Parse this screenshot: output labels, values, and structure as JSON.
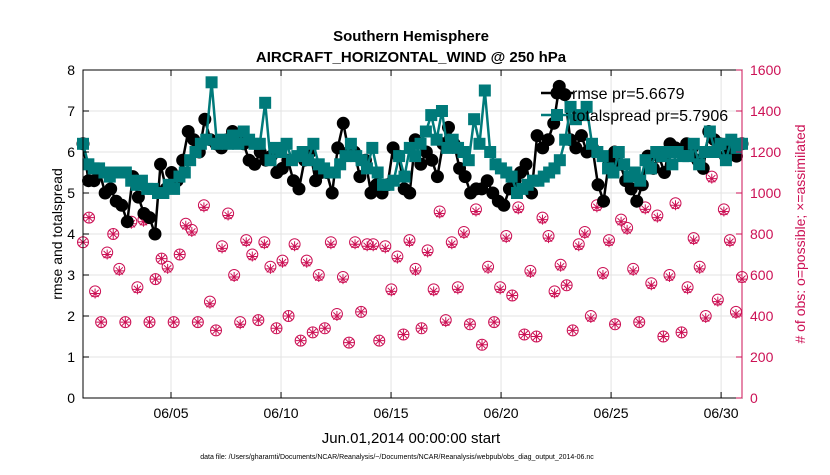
{
  "chart_data": {
    "type": "line",
    "title": "Southern Hemisphere",
    "subtitle": "AIRCRAFT_HORIZONTAL_WIND @ 250 hPa",
    "xlabel": "Jun.01,2014 00:00:00 start",
    "ylabel": "rmse and totalspread",
    "ylabel_right": "# of obs: o=possible; ×=assimilated",
    "footer": "data file: /Users/gharamti/Documents/NCAR/Reanalysis/~/Documents/NCAR/Reanalysis/webpub/obs_diag_output_2014-06.nc",
    "xlim": [
      1.0,
      30.95
    ],
    "ylim": [
      0,
      8
    ],
    "ylim_right": [
      0,
      1600
    ],
    "x_ticks": [
      5,
      10,
      15,
      20,
      25,
      30
    ],
    "x_tick_labels": [
      "06/05",
      "06/10",
      "06/15",
      "06/20",
      "06/25",
      "06/30"
    ],
    "y_ticks": [
      0,
      1,
      2,
      3,
      4,
      5,
      6,
      7,
      8
    ],
    "y_tick_labels": [
      "0",
      "1",
      "2",
      "3",
      "4",
      "5",
      "6",
      "7",
      "8"
    ],
    "y_ticks_right": [
      0,
      200,
      400,
      600,
      800,
      1000,
      1200,
      1400,
      1600
    ],
    "y_tick_labels_right": [
      "0",
      "200",
      "400",
      "600",
      "800",
      "1000",
      "1200",
      "1400",
      "1600"
    ],
    "grid": true,
    "legend_position": "top-right",
    "colors": {
      "rmse": "#000000",
      "totalspread": "#007a7a",
      "obs": "#cc1155",
      "axis_right": "#cc1155"
    },
    "series": [
      {
        "name": "rmse pr=5.6679",
        "axis": "left",
        "marker": "circle",
        "values": [
          6.2,
          5.3,
          5.3,
          5.5,
          5.0,
          5.1,
          4.8,
          4.7,
          4.3,
          5.4,
          4.9,
          4.5,
          4.4,
          4.0,
          5.7,
          5.1,
          5.5,
          5.3,
          5.8,
          6.5,
          6.3,
          6.0,
          6.8,
          6.3,
          6.2,
          6.1,
          6.3,
          6.5,
          6.3,
          6.2,
          5.8,
          5.7,
          6.0,
          5.8,
          5.9,
          5.5,
          5.6,
          5.8,
          5.3,
          5.1,
          5.8,
          6.0,
          5.3,
          5.5,
          5.5,
          5.0,
          6.1,
          6.7,
          6.0,
          6.0,
          5.4,
          5.8,
          5.0,
          5.2,
          5.0,
          5.2,
          6.1,
          5.9,
          5.1,
          5.0,
          6.3,
          5.7,
          6.0,
          5.8,
          5.4,
          6.2,
          6.6,
          6.2,
          5.6,
          5.4,
          5.0,
          5.1,
          5.1,
          5.3,
          5.0,
          4.8,
          4.7,
          5.1,
          5.3,
          5.5,
          5.7,
          5.0,
          6.4,
          6.1,
          6.3,
          6.7,
          7.6,
          7.4,
          6.3,
          6.1,
          6.4,
          6.0,
          6.1,
          5.2,
          4.8,
          5.8,
          6.0,
          5.7,
          5.3,
          5.1,
          4.8,
          5.2,
          5.9,
          5.6,
          5.9,
          5.5,
          6.2,
          6.1,
          6.0,
          6.2,
          6.1,
          5.8,
          5.6,
          6.5,
          6.3,
          6.2,
          5.9,
          6.1,
          5.9,
          6.2
        ]
      },
      {
        "name": "totalspread pr=5.7906",
        "axis": "left",
        "marker": "square",
        "values": [
          6.2,
          5.7,
          5.6,
          5.6,
          5.5,
          5.4,
          5.5,
          5.5,
          5.5,
          5.3,
          5.2,
          5.3,
          5.1,
          5.1,
          5.0,
          5.0,
          5.2,
          5.1,
          5.4,
          5.5,
          5.8,
          6.0,
          6.2,
          6.3,
          7.7,
          6.2,
          6.3,
          6.2,
          6.4,
          6.2,
          6.5,
          6.3,
          6.2,
          6.2,
          7.2,
          5.8,
          6.1,
          6.0,
          6.2,
          5.8,
          5.9,
          6.0,
          5.8,
          6.2,
          5.7,
          5.6,
          5.5,
          5.5,
          5.7,
          5.9,
          6.2,
          5.9,
          5.8,
          5.6,
          6.1,
          5.5,
          5.2,
          5.2,
          5.3,
          5.9,
          5.4,
          6.1,
          5.9,
          6.2,
          6.5,
          6.9,
          6.3,
          7.0,
          6.1,
          6.3,
          6.1,
          6.0,
          5.8,
          6.8,
          6.2,
          7.5,
          6.0,
          5.7,
          5.6,
          5.5,
          5.4,
          5.0,
          5.1,
          5.2,
          5.3,
          5.3,
          5.4,
          5.5,
          5.6,
          5.8,
          6.3,
          7.1,
          6.8,
          6.9,
          7.1,
          6.2,
          6.0,
          5.9,
          5.6,
          5.5,
          6.0,
          5.7,
          5.4,
          5.5,
          5.3,
          5.8,
          5.6,
          6.0,
          5.9,
          6.0,
          5.7,
          6.0,
          5.9,
          5.9,
          6.2,
          5.7,
          6.0,
          6.5,
          6.0,
          6.2,
          5.8,
          6.3,
          6.1,
          6.2
        ]
      },
      {
        "name": "possible",
        "axis": "right",
        "marker": "circle-open",
        "values": [
          760,
          880,
          520,
          370,
          710,
          800,
          630,
          370,
          860,
          540,
          870,
          370,
          580,
          680,
          640,
          370,
          700,
          850,
          820,
          370,
          940,
          470,
          330,
          740,
          900,
          600,
          370,
          770,
          700,
          380,
          760,
          640,
          340,
          670,
          400,
          750,
          280,
          670,
          320,
          600,
          340,
          760,
          410,
          590,
          270,
          760,
          420,
          750,
          750,
          280,
          740,
          530,
          690,
          310,
          770,
          630,
          340,
          720,
          530,
          910,
          380,
          760,
          540,
          810,
          360,
          920,
          260,
          640,
          370,
          540,
          790,
          500,
          930,
          310,
          620,
          300,
          880,
          790,
          520,
          650,
          550,
          330,
          750,
          810,
          400,
          940,
          610,
          770,
          360,
          870,
          830,
          630,
          370,
          930,
          560,
          890,
          300,
          600,
          950,
          320,
          540,
          780,
          640,
          400,
          1080,
          480,
          920,
          770,
          420,
          590
        ]
      },
      {
        "name": "assimilated",
        "axis": "right",
        "marker": "asterisk",
        "values": [
          760,
          880,
          510,
          370,
          700,
          800,
          620,
          370,
          850,
          530,
          860,
          370,
          580,
          680,
          630,
          370,
          700,
          840,
          810,
          370,
          930,
          460,
          330,
          730,
          890,
          590,
          360,
          760,
          690,
          380,
          750,
          630,
          340,
          660,
          400,
          740,
          280,
          660,
          320,
          590,
          340,
          750,
          400,
          580,
          270,
          750,
          420,
          740,
          740,
          280,
          730,
          520,
          680,
          310,
          760,
          620,
          340,
          710,
          520,
          900,
          370,
          750,
          530,
          800,
          360,
          910,
          260,
          630,
          370,
          530,
          780,
          500,
          920,
          310,
          610,
          300,
          870,
          780,
          510,
          640,
          550,
          330,
          740,
          800,
          390,
          930,
          600,
          760,
          360,
          860,
          820,
          620,
          370,
          920,
          550,
          880,
          300,
          590,
          940,
          320,
          530,
          770,
          630,
          390,
          1070,
          470,
          910,
          760,
          410,
          580
        ]
      }
    ]
  }
}
